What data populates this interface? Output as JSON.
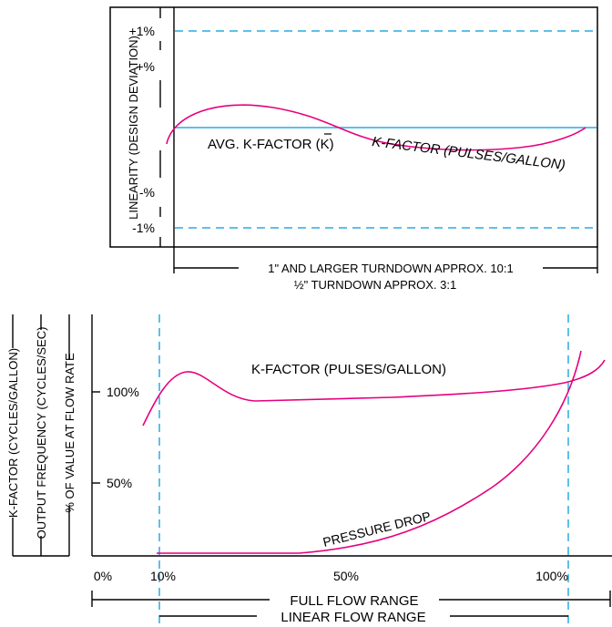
{
  "top": {
    "y_axis_label": "LINEARITY (DESIGN DEVIATION)",
    "tick_plus1": "+1%",
    "tick_plus": "+%",
    "tick_minus": "-%",
    "tick_minus1": "-1%",
    "avg_label": "AVG. K-FACTOR (K)",
    "curve_label": "K-FACTOR (PULSES/GALLON)",
    "range_large": "1\" AND LARGER TURNDOWN APPROX. 10:1",
    "range_half": "½\" TURNDOWN APPROX. 3:1"
  },
  "bottom": {
    "y_label_1": "K-FACTOR (CYCLES/GALLON)",
    "y_label_2": "OUTPUT FREQUENCY (CYCLES/SEC)",
    "y_label_3": "% OF VALUE AT FLOW RATE",
    "tick_100": "100%",
    "tick_50": "50%",
    "kfactor_label": "K-FACTOR (PULSES/GALLON)",
    "pressure_label": "PRESSURE DROP",
    "x_0": "0%",
    "x_10": "10%",
    "x_50": "50%",
    "x_100": "100%",
    "full_range": "FULL FLOW RANGE",
    "linear_range": "LINEAR FLOW RANGE"
  },
  "colors": {
    "curve": "#e6007e",
    "reference": "#29abe2",
    "axis": "#000000"
  }
}
